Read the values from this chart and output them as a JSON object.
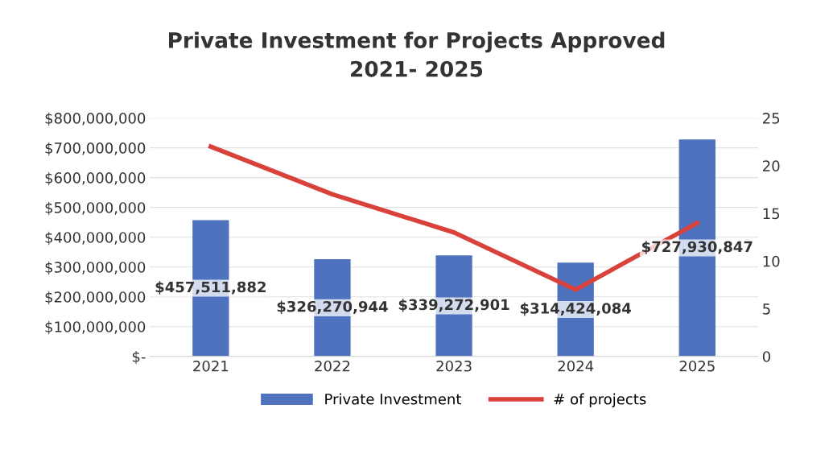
{
  "chart_data": {
    "type": "bar",
    "title": "Private Investment for Projects Approved\n2021- 2025",
    "categories": [
      "2021",
      "2022",
      "2023",
      "2024",
      "2025"
    ],
    "series": [
      {
        "name": "Private Investment",
        "color": "#4f72be",
        "values": [
          457511882,
          326270944,
          339272901,
          314424084,
          727930847
        ],
        "value_labels": [
          "$457,511,882",
          "$326,270,944",
          "$339,272,901",
          "$314,424,084",
          "$727,930,847"
        ]
      },
      {
        "name": "# of projects",
        "type": "line",
        "axis": "y2",
        "color": "#d9423a",
        "values": [
          22,
          17,
          13,
          7,
          14
        ]
      }
    ],
    "ylim": [
      0,
      800000000
    ],
    "yticks": [
      {
        "value": 0,
        "label": "$-"
      },
      {
        "value": 100000000,
        "label": "$100,000,000"
      },
      {
        "value": 200000000,
        "label": "$200,000,000"
      },
      {
        "value": 300000000,
        "label": "$300,000,000"
      },
      {
        "value": 400000000,
        "label": "$400,000,000"
      },
      {
        "value": 500000000,
        "label": "$500,000,000"
      },
      {
        "value": 600000000,
        "label": "$600,000,000"
      },
      {
        "value": 700000000,
        "label": "$700,000,000"
      },
      {
        "value": 800000000,
        "label": "$800,000,000"
      }
    ],
    "y2lim": [
      0,
      25
    ],
    "y2ticks": [
      0,
      5,
      10,
      15,
      20,
      25
    ],
    "grid": "y",
    "legend": "bottom",
    "marker": "none",
    "line_style": "solid"
  }
}
